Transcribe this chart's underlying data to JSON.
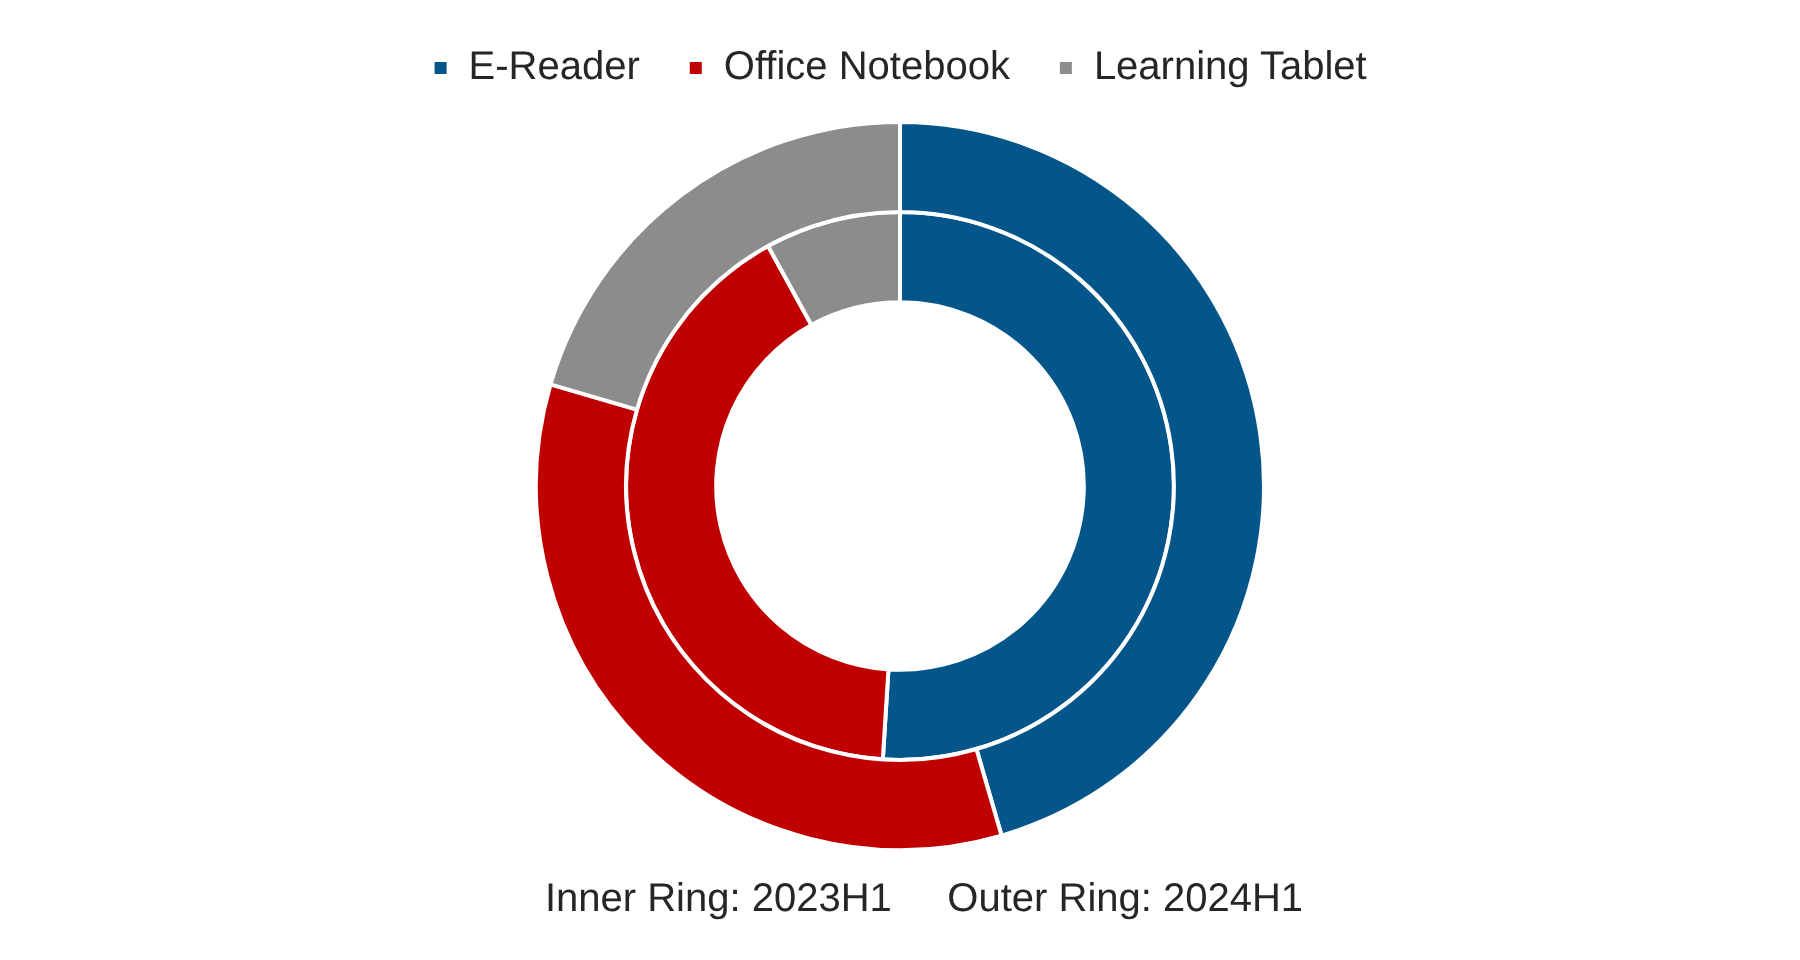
{
  "chart_data": {
    "type": "donut",
    "categories": [
      "E-Reader",
      "Office Notebook",
      "Learning Tablet"
    ],
    "colors": [
      "#04558a",
      "#c00000",
      "#8c8c8c"
    ],
    "series": [
      {
        "values": [
          51,
          41,
          8
        ]
      },
      {
        "values": [
          45.5,
          34,
          20.5
        ]
      }
    ],
    "legend": "top",
    "annotations": [
      "Inner Ring: 2023H1     Outer Ring: 2024H1"
    ]
  }
}
